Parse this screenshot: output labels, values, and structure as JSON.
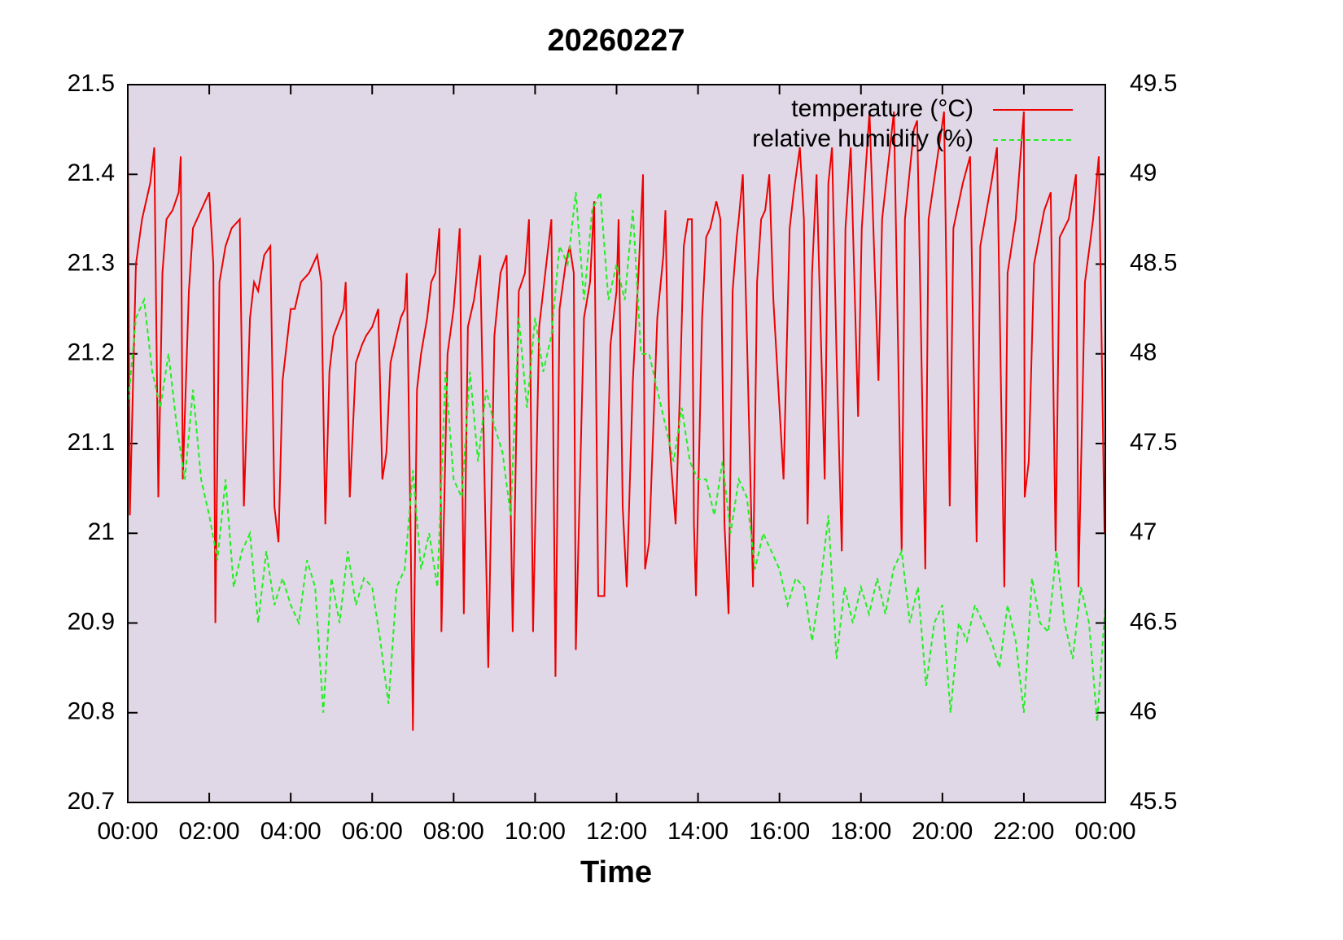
{
  "chart_data": {
    "type": "line",
    "title": "20260227",
    "xlabel": "Time",
    "xlim": [
      0,
      24
    ],
    "xticks": [
      {
        "value": 0,
        "label": "00:00"
      },
      {
        "value": 2,
        "label": "02:00"
      },
      {
        "value": 4,
        "label": "04:00"
      },
      {
        "value": 6,
        "label": "06:00"
      },
      {
        "value": 8,
        "label": "08:00"
      },
      {
        "value": 10,
        "label": "10:00"
      },
      {
        "value": 12,
        "label": "12:00"
      },
      {
        "value": 14,
        "label": "14:00"
      },
      {
        "value": 16,
        "label": "16:00"
      },
      {
        "value": 18,
        "label": "18:00"
      },
      {
        "value": 20,
        "label": "20:00"
      },
      {
        "value": 22,
        "label": "22:00"
      },
      {
        "value": 24,
        "label": "00:00"
      }
    ],
    "ylim": [
      20.7,
      21.5
    ],
    "yticks": [
      20.7,
      20.8,
      20.9,
      21,
      21.1,
      21.2,
      21.3,
      21.4,
      21.5
    ],
    "y2lim": [
      45.5,
      49.5
    ],
    "y2ticks": [
      45.5,
      46,
      46.5,
      47,
      47.5,
      48,
      48.5,
      49,
      49.5
    ],
    "legend": "upper right",
    "background": "#e0d8e6",
    "series": [
      {
        "name": "temperature (°C)",
        "color": "#ee0000",
        "dash": "solid",
        "axis": "y",
        "x": [
          0,
          0.05,
          0.2,
          0.35,
          0.55,
          0.65,
          0.75,
          0.85,
          0.95,
          1.1,
          1.25,
          1.3,
          1.35,
          1.5,
          1.6,
          1.7,
          2.0,
          2.1,
          2.15,
          2.25,
          2.4,
          2.55,
          2.75,
          2.85,
          3.0,
          3.1,
          3.2,
          3.35,
          3.5,
          3.6,
          3.7,
          3.8,
          3.9,
          4.0,
          4.1,
          4.25,
          4.45,
          4.65,
          4.75,
          4.85,
          4.95,
          5.05,
          5.3,
          5.35,
          5.45,
          5.6,
          5.75,
          5.85,
          6.0,
          6.15,
          6.25,
          6.35,
          6.45,
          6.55,
          6.7,
          6.8,
          6.85,
          6.95,
          7.0,
          7.1,
          7.2,
          7.35,
          7.45,
          7.55,
          7.65,
          7.7,
          7.85,
          8.0,
          8.15,
          8.25,
          8.35,
          8.5,
          8.65,
          8.85,
          9.0,
          9.15,
          9.3,
          9.45,
          9.6,
          9.75,
          9.85,
          9.95,
          10.1,
          10.25,
          10.4,
          10.5,
          10.6,
          10.75,
          10.85,
          10.95,
          11.0,
          11.2,
          11.35,
          11.45,
          11.55,
          11.7,
          11.85,
          12.0,
          12.05,
          12.15,
          12.25,
          12.4,
          12.55,
          12.65,
          12.7,
          12.8,
          13.0,
          13.15,
          13.2,
          13.3,
          13.45,
          13.55,
          13.65,
          13.75,
          13.85,
          13.9,
          13.95,
          14.1,
          14.2,
          14.3,
          14.45,
          14.55,
          14.65,
          14.75,
          14.85,
          14.95,
          15.0,
          15.1,
          15.2,
          15.35,
          15.45,
          15.55,
          15.65,
          15.75,
          15.85,
          16.0,
          16.1,
          16.25,
          16.35,
          16.5,
          16.6,
          16.69,
          16.8,
          16.91,
          17.11,
          17.2,
          17.29,
          17.4,
          17.53,
          17.62,
          17.75,
          17.93,
          18.02,
          18.21,
          18.43,
          18.52,
          18.81,
          19.0,
          19.08,
          19.3,
          19.38,
          19.58,
          19.66,
          20.04,
          20.18,
          20.27,
          20.5,
          20.68,
          20.84,
          20.93,
          21.2,
          21.34,
          21.52,
          21.6,
          21.8,
          22.0,
          22.02,
          22.12,
          22.25,
          22.5,
          22.66,
          22.78,
          22.88,
          23.1,
          23.28,
          23.34,
          23.5,
          23.7,
          23.84,
          23.98
        ],
        "values": [
          21.46,
          21.02,
          21.3,
          21.35,
          21.39,
          21.43,
          21.04,
          21.29,
          21.35,
          21.36,
          21.38,
          21.42,
          21.06,
          21.27,
          21.34,
          21.35,
          21.38,
          21.3,
          20.9,
          21.28,
          21.32,
          21.34,
          21.35,
          21.03,
          21.24,
          21.28,
          21.27,
          21.31,
          21.32,
          21.03,
          20.99,
          21.17,
          21.21,
          21.25,
          21.25,
          21.28,
          21.29,
          21.31,
          21.28,
          21.01,
          21.18,
          21.22,
          21.25,
          21.28,
          21.04,
          21.19,
          21.21,
          21.22,
          21.23,
          21.25,
          21.06,
          21.09,
          21.19,
          21.21,
          21.24,
          21.25,
          21.29,
          20.98,
          20.78,
          21.16,
          21.2,
          21.24,
          21.28,
          21.29,
          21.34,
          20.89,
          21.2,
          21.25,
          21.34,
          20.91,
          21.23,
          21.26,
          21.31,
          20.85,
          21.22,
          21.29,
          21.31,
          20.89,
          21.27,
          21.29,
          21.35,
          20.89,
          21.23,
          21.29,
          21.35,
          20.84,
          21.25,
          21.3,
          21.32,
          21.29,
          20.87,
          21.24,
          21.28,
          21.37,
          20.93,
          20.93,
          21.21,
          21.27,
          21.35,
          21.03,
          20.94,
          21.17,
          21.3,
          21.4,
          20.96,
          20.99,
          21.24,
          21.31,
          21.36,
          21.1,
          21.01,
          21.15,
          21.32,
          21.35,
          21.35,
          21.01,
          20.93,
          21.24,
          21.33,
          21.34,
          21.37,
          21.35,
          21.01,
          20.91,
          21.27,
          21.33,
          21.35,
          21.4,
          21.22,
          20.94,
          21.28,
          21.35,
          21.36,
          21.4,
          21.26,
          21.14,
          21.06,
          21.34,
          21.38,
          21.43,
          21.35,
          21.01,
          21.29,
          21.4,
          21.06,
          21.39,
          21.43,
          21.2,
          20.98,
          21.34,
          21.43,
          21.13,
          21.34,
          21.47,
          21.17,
          21.35,
          21.47,
          20.98,
          21.35,
          21.45,
          21.46,
          20.96,
          21.35,
          21.47,
          21.03,
          21.34,
          21.39,
          21.42,
          20.99,
          21.32,
          21.39,
          21.43,
          20.94,
          21.29,
          21.35,
          21.47,
          21.04,
          21.08,
          21.3,
          21.36,
          21.38,
          20.98,
          21.33,
          21.35,
          21.4,
          20.94,
          21.28,
          21.35,
          21.42,
          21.0
        ]
      },
      {
        "name": "relative humidity (%)",
        "color": "#22ee22",
        "dash": "dashed",
        "axis": "y2",
        "x": [
          0,
          0.2,
          0.4,
          0.6,
          0.8,
          1,
          1.2,
          1.4,
          1.6,
          1.8,
          2,
          2.2,
          2.4,
          2.6,
          2.8,
          3,
          3.2,
          3.4,
          3.6,
          3.8,
          4,
          4.2,
          4.4,
          4.6,
          4.8,
          5,
          5.2,
          5.4,
          5.6,
          5.8,
          6,
          6.2,
          6.4,
          6.6,
          6.8,
          7,
          7.2,
          7.4,
          7.6,
          7.8,
          8,
          8.2,
          8.4,
          8.6,
          8.8,
          9,
          9.2,
          9.4,
          9.6,
          9.8,
          10,
          10.2,
          10.4,
          10.6,
          10.8,
          11,
          11.2,
          11.4,
          11.6,
          11.8,
          12,
          12.2,
          12.4,
          12.6,
          12.8,
          13,
          13.2,
          13.4,
          13.6,
          13.8,
          14,
          14.2,
          14.4,
          14.6,
          14.8,
          15,
          15.2,
          15.4,
          15.6,
          15.8,
          16,
          16.2,
          16.4,
          16.6,
          16.8,
          17,
          17.2,
          17.4,
          17.6,
          17.8,
          18,
          18.2,
          18.4,
          18.6,
          18.8,
          19,
          19.2,
          19.4,
          19.6,
          19.8,
          20,
          20.2,
          20.4,
          20.6,
          20.8,
          21,
          21.2,
          21.4,
          21.6,
          21.8,
          22,
          22.2,
          22.4,
          22.6,
          22.8,
          23,
          23.2,
          23.4,
          23.6,
          23.8,
          24
        ],
        "values": [
          47.7,
          48.2,
          48.3,
          47.9,
          47.7,
          48,
          47.6,
          47.3,
          47.8,
          47.3,
          47.1,
          46.85,
          47.3,
          46.7,
          46.9,
          47,
          46.5,
          46.9,
          46.6,
          46.75,
          46.6,
          46.5,
          46.85,
          46.7,
          46,
          46.75,
          46.5,
          46.9,
          46.6,
          46.75,
          46.7,
          46.4,
          46.05,
          46.7,
          46.8,
          47.35,
          46.8,
          47,
          46.7,
          47.9,
          47.3,
          47.2,
          47.9,
          47.4,
          47.8,
          47.6,
          47.45,
          47.1,
          48.2,
          47.7,
          48.2,
          47.9,
          48.1,
          48.6,
          48.5,
          48.9,
          48.3,
          48.8,
          48.9,
          48.3,
          48.5,
          48.3,
          48.8,
          48,
          48,
          47.8,
          47.6,
          47.4,
          47.7,
          47.4,
          47.3,
          47.3,
          47.1,
          47.4,
          47,
          47.3,
          47.2,
          46.8,
          47,
          46.9,
          46.8,
          46.6,
          46.75,
          46.7,
          46.4,
          46.7,
          47.1,
          46.3,
          46.7,
          46.5,
          46.7,
          46.55,
          46.75,
          46.55,
          46.8,
          46.9,
          46.5,
          46.7,
          46.15,
          46.5,
          46.6,
          46,
          46.5,
          46.4,
          46.6,
          46.5,
          46.4,
          46.25,
          46.6,
          46.4,
          46,
          46.75,
          46.5,
          46.45,
          46.9,
          46.5,
          46.3,
          46.7,
          46.5,
          45.95,
          46.6
        ]
      }
    ]
  }
}
